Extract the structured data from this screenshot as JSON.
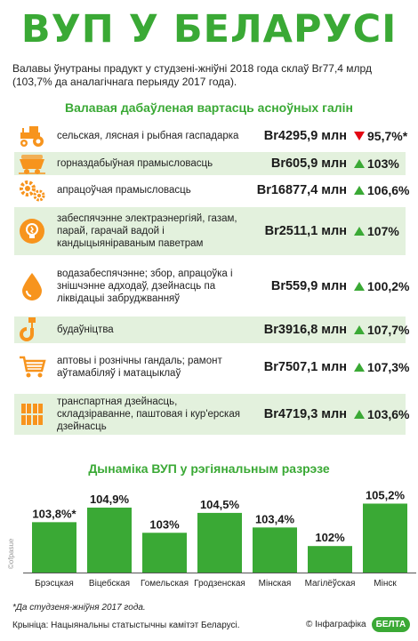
{
  "title": "ВУП У БЕЛАРУСІ",
  "intro": "Валавы ўнутраны прадукт у студзені-жніўні 2018 года склаў Br77,4 млрд (103,7% да аналагічнага перыяду 2017 года).",
  "section1_title": "Валавая дабаўленая вартасць асноўных галін",
  "section2_title": "Дынаміка ВУП у рэгіянальным разрэзе",
  "colors": {
    "accent": "#3aa935",
    "orange": "#f7941d",
    "red": "#e30613",
    "shade": "#e3f1dd"
  },
  "sectors": [
    {
      "label": "сельская, лясная і рыбная гаспадарка",
      "value": "Br4295,9 млн",
      "change": "95,7%*",
      "direction": "down",
      "icon": "tractor-icon"
    },
    {
      "label": "горназдабыўная прамысловасць",
      "value": "Br605,9 млн",
      "change": "103%",
      "direction": "up",
      "icon": "mining-cart-icon"
    },
    {
      "label": "апрацоўчая прамысловасць",
      "value": "Br16877,4 млн",
      "change": "106,6%",
      "direction": "up",
      "icon": "gears-icon"
    },
    {
      "label": "забеспячэнне электраэнергіяй, газам, парай, гарачай вадой і кандыцыяніраваным паветрам",
      "value": "Br2511,1 млн",
      "change": "107%",
      "direction": "up",
      "icon": "lightbulb-icon"
    },
    {
      "label": "водазабеспячэнне; збор, апрацоўка і знішчэнне адходаў, дзейнасць па ліквідацыі забруджванняў",
      "value": "Br559,9 млн",
      "change": "100,2%",
      "direction": "up",
      "icon": "water-drop-icon"
    },
    {
      "label": "будаўніцтва",
      "value": "Br3916,8 млн",
      "change": "107,7%",
      "direction": "up",
      "icon": "crane-hook-icon"
    },
    {
      "label": "аптовы і рознічны гандаль; рамонт аўтамабіляў і матацыклаў",
      "value": "Br7507,1 млн",
      "change": "107,3%",
      "direction": "up",
      "icon": "shopping-cart-icon"
    },
    {
      "label": "транспартная дзейнасць, складзіраванне, паштовая і кур'ерская дзейнасць",
      "value": "Br4719,3 млн",
      "change": "103,6%",
      "direction": "up",
      "icon": "boxes-icon"
    }
  ],
  "chart_data": {
    "type": "bar",
    "title": "Дынаміка ВУП у рэгіянальным разрэзе",
    "categories": [
      "Брэсцкая",
      "Віцебская",
      "Гомельская",
      "Гродзенская",
      "Мінская",
      "Магілёўская",
      "Мінск"
    ],
    "values": [
      103.8,
      104.9,
      103.0,
      104.5,
      103.4,
      102.0,
      105.2
    ],
    "value_labels": [
      "103,8%*",
      "104,9%",
      "103%",
      "104,5%",
      "103,4%",
      "102%",
      "105,2%"
    ],
    "ylim": [
      100,
      105.5
    ],
    "bar_color": "#3aa935",
    "grid": false
  },
  "side_credit": "©ofpasue",
  "footnote": "*Да студзеня-жніўня 2017 года.",
  "source": "Крыніца: Нацыянальны статыстычны камітэт Беларусі.",
  "brand": {
    "text": "© Інфаграфіка",
    "logo": "БЕЛТА"
  }
}
